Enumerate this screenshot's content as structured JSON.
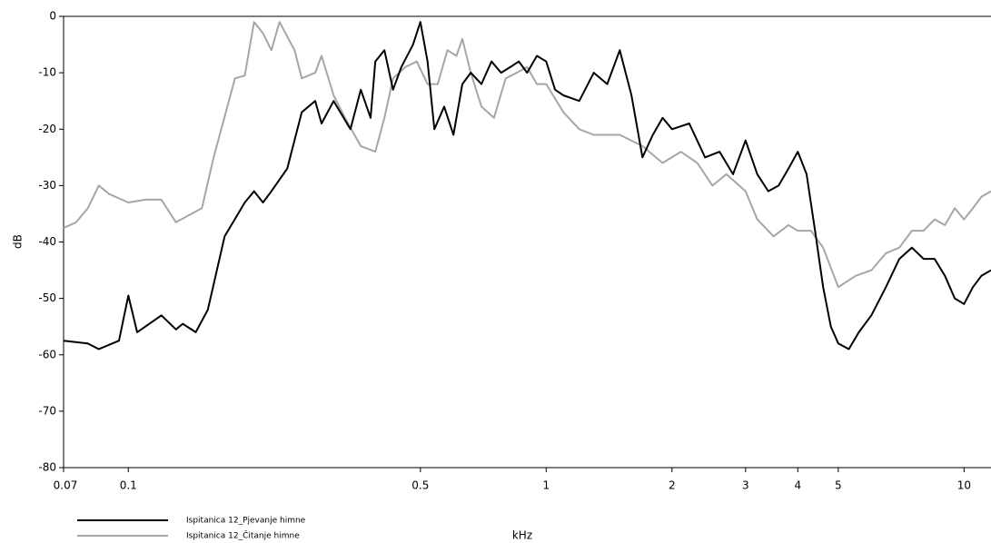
{
  "chart_data": {
    "type": "line",
    "xlabel": "kHz",
    "ylabel": "dB",
    "xscale": "log",
    "xlim": [
      0.07,
      11.6
    ],
    "xticks": [
      0.07,
      0.1,
      0.5,
      1,
      2,
      3,
      4,
      5,
      10
    ],
    "ylim": [
      -80,
      0
    ],
    "yticks": [
      0,
      -10,
      -20,
      -30,
      -40,
      -50,
      -60,
      -70,
      -80
    ],
    "legend": "bottom-left",
    "series": [
      {
        "name": "Ispitanica 12_Pjevanje himne",
        "color": "#000000",
        "x": [
          0.07,
          0.08,
          0.085,
          0.095,
          0.1,
          0.105,
          0.12,
          0.13,
          0.135,
          0.145,
          0.155,
          0.17,
          0.19,
          0.2,
          0.21,
          0.22,
          0.24,
          0.26,
          0.28,
          0.29,
          0.31,
          0.34,
          0.36,
          0.38,
          0.39,
          0.41,
          0.43,
          0.45,
          0.48,
          0.5,
          0.52,
          0.54,
          0.57,
          0.6,
          0.63,
          0.66,
          0.7,
          0.74,
          0.78,
          0.82,
          0.86,
          0.9,
          0.95,
          1.0,
          1.05,
          1.1,
          1.2,
          1.3,
          1.4,
          1.5,
          1.6,
          1.7,
          1.8,
          1.9,
          2.0,
          2.2,
          2.4,
          2.6,
          2.8,
          3.0,
          3.2,
          3.4,
          3.6,
          3.8,
          4.0,
          4.2,
          4.4,
          4.6,
          4.8,
          5.0,
          5.3,
          5.6,
          6.0,
          6.5,
          7.0,
          7.5,
          8.0,
          8.5,
          9.0,
          9.5,
          10.0,
          10.5,
          11.0,
          11.6
        ],
        "values": [
          -57.5,
          -58,
          -59,
          -57.5,
          -49.5,
          -56,
          -53,
          -55.5,
          -54.5,
          -56,
          -52,
          -39,
          -33,
          -31,
          -33,
          -31,
          -27,
          -17,
          -15,
          -19,
          -15,
          -20,
          -13,
          -18,
          -8,
          -6,
          -13,
          -9,
          -5,
          -1,
          -8,
          -20,
          -16,
          -21,
          -12,
          -10,
          -12,
          -8,
          -10,
          -9,
          -8,
          -10,
          -7,
          -8,
          -13,
          -14,
          -15,
          -10,
          -12,
          -6,
          -14,
          -25,
          -21,
          -18,
          -20,
          -19,
          -25,
          -24,
          -28,
          -22,
          -28,
          -31,
          -30,
          -27,
          -24,
          -28,
          -38,
          -48,
          -55,
          -58,
          -59,
          -56,
          -53,
          -48,
          -43,
          -41,
          -43,
          -43,
          -46,
          -50,
          -51,
          -48,
          -46,
          -45
        ]
      },
      {
        "name": "Ispitanica 12_Čitanje himne",
        "color": "#a6a6a6",
        "x": [
          0.07,
          0.075,
          0.08,
          0.085,
          0.09,
          0.1,
          0.11,
          0.12,
          0.13,
          0.15,
          0.16,
          0.18,
          0.19,
          0.2,
          0.21,
          0.22,
          0.23,
          0.25,
          0.26,
          0.28,
          0.29,
          0.31,
          0.33,
          0.36,
          0.39,
          0.41,
          0.43,
          0.46,
          0.49,
          0.52,
          0.55,
          0.58,
          0.61,
          0.63,
          0.66,
          0.7,
          0.75,
          0.8,
          0.85,
          0.9,
          0.95,
          1.0,
          1.1,
          1.2,
          1.3,
          1.5,
          1.7,
          1.9,
          2.1,
          2.3,
          2.5,
          2.7,
          3.0,
          3.2,
          3.5,
          3.8,
          4.0,
          4.3,
          4.6,
          5.0,
          5.5,
          6.0,
          6.5,
          7.0,
          7.5,
          8.0,
          8.5,
          9.0,
          9.5,
          10.0,
          10.5,
          11.0,
          11.6
        ],
        "values": [
          -37.5,
          -36.5,
          -34,
          -30,
          -31.5,
          -33,
          -32.5,
          -32.5,
          -36.5,
          -34,
          -25,
          -11,
          -10.5,
          -1,
          -3,
          -6,
          -1,
          -6,
          -11,
          -10,
          -7,
          -14,
          -18,
          -23,
          -24,
          -18,
          -11,
          -9,
          -8,
          -12,
          -12,
          -6,
          -7,
          -4,
          -10,
          -16,
          -18,
          -11,
          -10,
          -9,
          -12,
          -12,
          -17,
          -20,
          -21,
          -21,
          -23,
          -26,
          -24,
          -26,
          -30,
          -28,
          -31,
          -36,
          -39,
          -37,
          -38,
          -38,
          -41,
          -48,
          -46,
          -45,
          -42,
          -41,
          -38,
          -38,
          -36,
          -37,
          -34,
          -36,
          -34,
          -32,
          -31
        ]
      }
    ]
  }
}
